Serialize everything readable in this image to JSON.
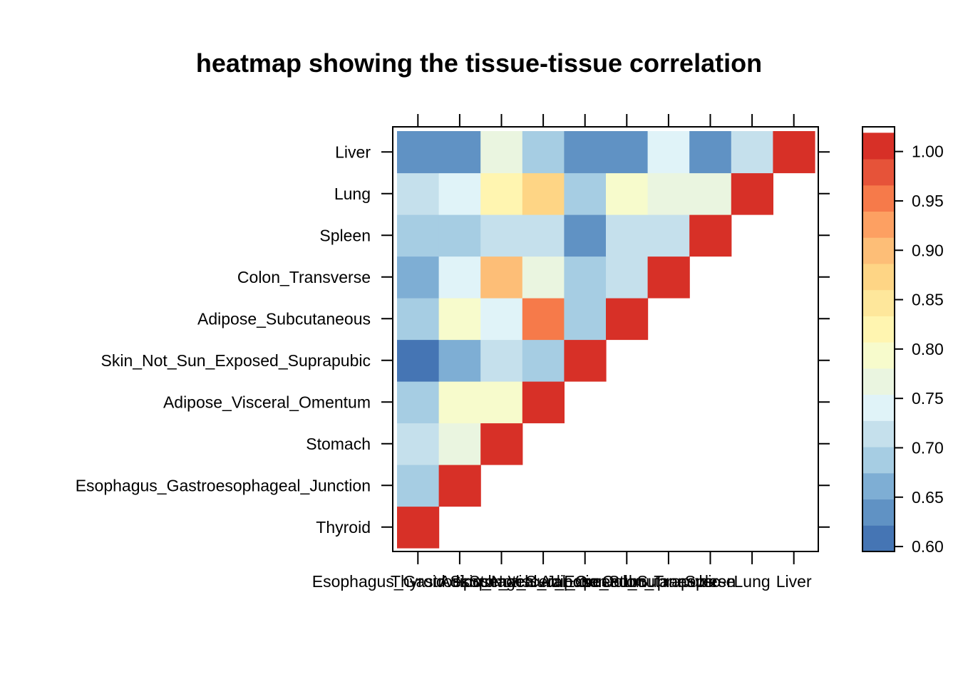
{
  "chart_data": {
    "type": "heatmap",
    "title": "heatmap showing the tissue-tissue correlation",
    "x_labels": [
      "Thyroid",
      "Esophagus_Gastroesophageal_Junction",
      "Stomach",
      "Adipose_Visceral_Omentum",
      "Skin_Not_Sun_Exposed_Suprapubic",
      "Adipose_Subcutaneous",
      "Colon_Transverse",
      "Spleen",
      "Lung",
      "Liver"
    ],
    "y_labels": [
      "Thyroid",
      "Esophagus_Gastroesophageal_Junction",
      "Stomach",
      "Adipose_Visceral_Omentum",
      "Skin_Not_Sun_Exposed_Suprapubic",
      "Adipose_Subcutaneous",
      "Colon_Transverse",
      "Spleen",
      "Lung",
      "Liver"
    ],
    "matrix": [
      [
        1.0,
        null,
        null,
        null,
        null,
        null,
        null,
        null,
        null,
        null
      ],
      [
        0.69,
        1.0,
        null,
        null,
        null,
        null,
        null,
        null,
        null,
        null
      ],
      [
        0.72,
        0.78,
        1.0,
        null,
        null,
        null,
        null,
        null,
        null,
        null
      ],
      [
        0.69,
        0.8,
        0.8,
        1.0,
        null,
        null,
        null,
        null,
        null,
        null
      ],
      [
        0.61,
        0.66,
        0.72,
        0.69,
        1.0,
        null,
        null,
        null,
        null,
        null
      ],
      [
        0.69,
        0.8,
        0.74,
        0.96,
        0.69,
        1.0,
        null,
        null,
        null,
        null
      ],
      [
        0.66,
        0.74,
        0.91,
        0.78,
        0.69,
        0.72,
        1.0,
        null,
        null,
        null
      ],
      [
        0.69,
        0.69,
        0.72,
        0.72,
        0.63,
        0.72,
        0.72,
        1.0,
        null,
        null
      ],
      [
        0.72,
        0.74,
        0.83,
        0.86,
        0.69,
        0.8,
        0.78,
        0.78,
        1.0,
        null
      ],
      [
        0.63,
        0.63,
        0.78,
        0.69,
        0.63,
        0.63,
        0.74,
        0.63,
        0.72,
        1.0
      ]
    ],
    "colorbar": {
      "ticks": [
        "0.60",
        "0.65",
        "0.70",
        "0.75",
        "0.80",
        "0.85",
        "0.90",
        "0.95",
        "1.00"
      ],
      "range": [
        0.595,
        1.025
      ],
      "bin_width": 0.0265,
      "colors": [
        "#4575B4",
        "#6092C4",
        "#7EAED4",
        "#A6CDE3",
        "#C5E0EC",
        "#E0F3F8",
        "#EAF5E0",
        "#F7FBCC",
        "#FFF5B0",
        "#FEE79B",
        "#FED585",
        "#FDBE77",
        "#FDA062",
        "#F67A4A",
        "#E65339",
        "#D73027"
      ]
    }
  }
}
